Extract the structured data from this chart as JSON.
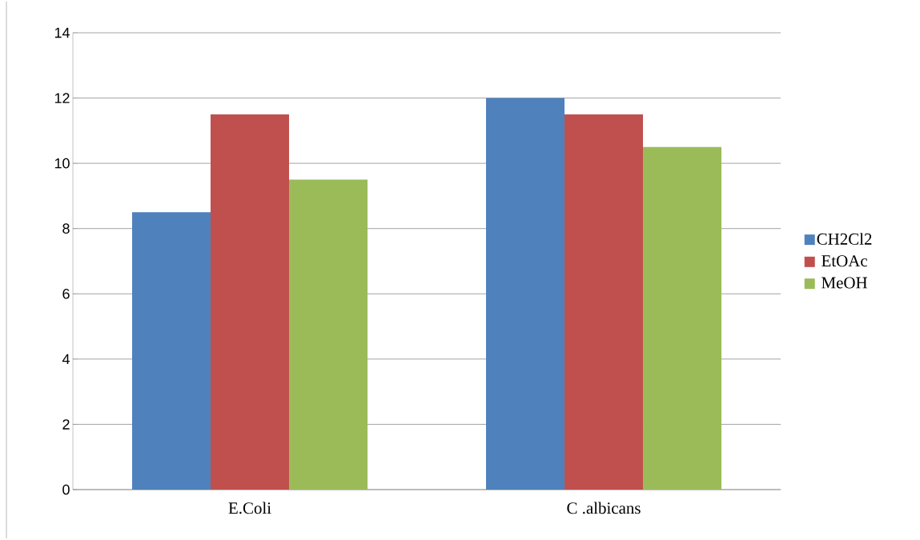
{
  "chart_data": {
    "type": "bar",
    "categories": [
      "E.Coli",
      "C .albicans"
    ],
    "series": [
      {
        "name": "CH2Cl2",
        "color": "#4f81bd",
        "values": [
          8.5,
          12
        ]
      },
      {
        "name": "EtOAc",
        "color": "#c0504d",
        "values": [
          11.5,
          11.5
        ]
      },
      {
        "name": "MeOH",
        "color": "#9bbb59",
        "values": [
          9.5,
          10.5
        ]
      }
    ],
    "ylim": [
      0,
      14
    ],
    "yticks": [
      0,
      2,
      4,
      6,
      8,
      10,
      12,
      14
    ],
    "grid": "y",
    "legend": "right"
  }
}
